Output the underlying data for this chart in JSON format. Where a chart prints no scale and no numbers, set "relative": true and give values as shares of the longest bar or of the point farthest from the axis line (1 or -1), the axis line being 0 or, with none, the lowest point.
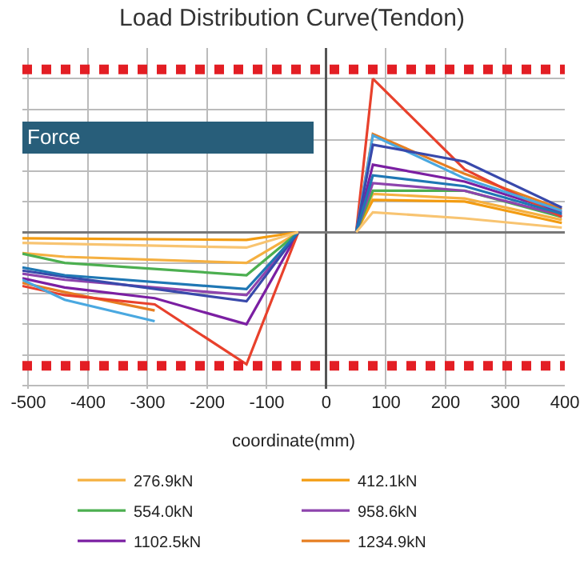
{
  "chart_data": {
    "type": "line",
    "title": "Load Distribution Curve(Tendon)",
    "xlabel": "coordinate(mm)",
    "relative": true,
    "xlim": [
      -510,
      400
    ],
    "xticks": [
      -500,
      -400,
      -300,
      -200,
      -100,
      0,
      100,
      200,
      300,
      400
    ],
    "grid": true,
    "legend": "bottom",
    "marker": "none",
    "line_style": "solid",
    "annotations": [
      "Force"
    ],
    "ref_lines": [
      {
        "axis": "y",
        "value": 1.06,
        "color": "#e31e24",
        "line_style": "dotted"
      },
      {
        "axis": "y",
        "value": -0.87,
        "color": "#e31e24",
        "line_style": "dotted"
      }
    ],
    "series": [
      {
        "name": "276.9kN",
        "color": "#f5b041",
        "x": [
          -510,
          -439,
          -134,
          -47,
          0,
          50,
          78,
          232,
          395
        ],
        "values": [
          -0.136,
          -0.16,
          -0.2,
          0,
          null,
          0,
          0.25,
          0.22,
          0.08
        ]
      },
      {
        "name": "412.1kN",
        "color": "#f39c12",
        "x": [
          -510,
          -134,
          -47,
          0,
          50,
          78,
          232,
          395
        ],
        "values": [
          -0.04,
          -0.05,
          0,
          null,
          0,
          0.21,
          0.2,
          0.06
        ]
      },
      {
        "name": "554.0kN",
        "color": "#4caf50",
        "x": [
          -510,
          -439,
          -134,
          -47,
          0,
          50,
          78,
          232,
          395
        ],
        "values": [
          -0.14,
          -0.2,
          -0.28,
          0,
          null,
          0,
          0.27,
          0.27,
          0.1
        ]
      },
      {
        "name": "958.6kN",
        "color": "#8e44ad",
        "x": [
          -510,
          -439,
          -134,
          -47,
          0,
          50,
          78,
          232,
          395
        ],
        "values": [
          -0.27,
          -0.31,
          -0.41,
          0,
          null,
          0,
          0.32,
          0.27,
          0.11
        ]
      },
      {
        "name": "1102.5kN",
        "color": "#7b1fa2",
        "x": [
          -510,
          -439,
          -288,
          -134,
          -47,
          0,
          50,
          78,
          232,
          395
        ],
        "values": [
          -0.3,
          -0.36,
          -0.43,
          -0.6,
          0,
          null,
          0,
          0.44,
          0.33,
          0.13
        ]
      },
      {
        "name": "1234.9kN",
        "color": "#e67e22",
        "x": [
          -510,
          -439,
          -288,
          0,
          50,
          78,
          232,
          395
        ],
        "values": [
          -0.33,
          -0.39,
          -0.51,
          null,
          0,
          0.64,
          0.38,
          0.15
        ]
      },
      {
        "color": "#e8412c",
        "x": [
          -510,
          -439,
          -288,
          -134,
          -47,
          0,
          50,
          78,
          232,
          395
        ],
        "values": [
          -0.35,
          -0.41,
          -0.47,
          -0.86,
          0,
          null,
          0,
          1.0,
          0.41,
          0.1
        ]
      },
      {
        "color": "#4aa8e0",
        "x": [
          -510,
          -439,
          -288,
          0,
          50,
          78,
          232,
          395
        ],
        "values": [
          -0.31,
          -0.44,
          -0.58,
          null,
          0,
          0.63,
          0.35,
          0.14
        ]
      },
      {
        "color": "#3949ab",
        "x": [
          -510,
          -439,
          -134,
          -47,
          0,
          50,
          78,
          232,
          395
        ],
        "values": [
          -0.25,
          -0.29,
          -0.45,
          0,
          null,
          0,
          0.57,
          0.46,
          0.16
        ]
      },
      {
        "color": "#1f77b4",
        "x": [
          -510,
          -439,
          -134,
          -47,
          0,
          50,
          78,
          232,
          395
        ],
        "values": [
          -0.23,
          -0.28,
          -0.37,
          0,
          null,
          0,
          0.37,
          0.3,
          0.12
        ]
      },
      {
        "color": "#f8c471",
        "x": [
          -510,
          -134,
          -47,
          0,
          50,
          78,
          232,
          395
        ],
        "values": [
          -0.07,
          -0.1,
          0,
          null,
          0,
          0.13,
          0.09,
          0.03
        ]
      }
    ]
  }
}
